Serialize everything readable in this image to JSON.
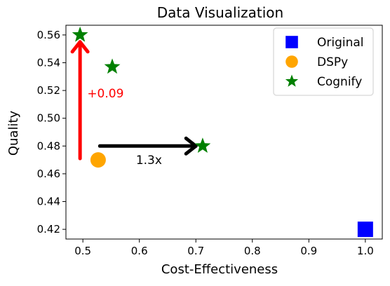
{
  "chart_data": {
    "type": "scatter",
    "title": "Data Visualization",
    "xlabel": "Cost-Effectiveness",
    "ylabel": "Quality",
    "xlim": [
      0.47,
      1.03
    ],
    "ylim": [
      0.413,
      0.567
    ],
    "x_ticks": [
      0.5,
      0.6,
      0.7,
      0.8,
      0.9,
      1.0
    ],
    "x_tick_labels": [
      "0.5",
      "0.6",
      "0.7",
      "0.8",
      "0.9",
      "1.0"
    ],
    "y_ticks": [
      0.42,
      0.44,
      0.46,
      0.48,
      0.5,
      0.52,
      0.54,
      0.56
    ],
    "y_tick_labels": [
      "0.42",
      "0.44",
      "0.46",
      "0.48",
      "0.50",
      "0.52",
      "0.54",
      "0.56"
    ],
    "grid": false,
    "legend_position": "top-right",
    "series": [
      {
        "name": "Original",
        "marker": "square",
        "color": "#0000ff",
        "points": [
          {
            "x": 1.0,
            "y": 0.42
          }
        ]
      },
      {
        "name": "DSPy",
        "marker": "circle",
        "color": "#ffa500",
        "points": [
          {
            "x": 0.527,
            "y": 0.47
          }
        ]
      },
      {
        "name": "Cognify",
        "marker": "star",
        "color": "#008000",
        "points": [
          {
            "x": 0.495,
            "y": 0.56
          },
          {
            "x": 0.552,
            "y": 0.537
          },
          {
            "x": 0.712,
            "y": 0.48
          }
        ]
      }
    ],
    "annotations": [
      {
        "text": "+0.09",
        "color": "#ff0000",
        "arrow": {
          "from": [
            0.495,
            0.471
          ],
          "to": [
            0.495,
            0.555
          ]
        },
        "label_at": [
          0.54,
          0.518
        ]
      },
      {
        "text": "1.3x",
        "color": "#000000",
        "arrow": {
          "from": [
            0.53,
            0.48
          ],
          "to": [
            0.7,
            0.48
          ]
        },
        "label_at": [
          0.617,
          0.47
        ]
      }
    ]
  }
}
